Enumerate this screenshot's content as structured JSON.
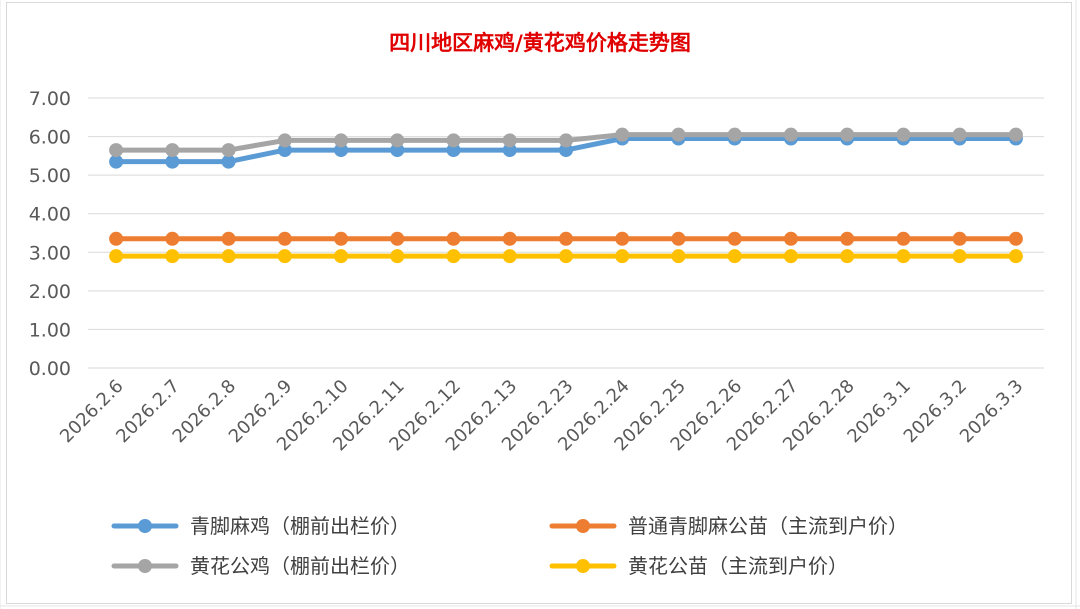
{
  "chart_data": {
    "type": "line",
    "title": "四川地区麻鸡/黄花鸡价格走势图",
    "title_color": "#e00000",
    "xlabel": "",
    "ylabel": "",
    "ylim": [
      0,
      7
    ],
    "y_ticks": [
      "0.00",
      "1.00",
      "2.00",
      "3.00",
      "4.00",
      "5.00",
      "6.00",
      "7.00"
    ],
    "grid": true,
    "legend_position": "bottom",
    "categories": [
      "2026.2.6",
      "2026.2.7",
      "2026.2.8",
      "2026.2.9",
      "2026.2.10",
      "2026.2.11",
      "2026.2.12",
      "2026.2.13",
      "2026.2.23",
      "2026.2.24",
      "2026.2.25",
      "2026.2.26",
      "2026.2.27",
      "2026.2.28",
      "2026.3.1",
      "2026.3.2",
      "2026.3.3"
    ],
    "series": [
      {
        "name": "青脚麻鸡（棚前出栏价）",
        "color": "#5b9bd5",
        "values": [
          5.35,
          5.35,
          5.35,
          5.65,
          5.65,
          5.65,
          5.65,
          5.65,
          5.65,
          5.95,
          5.95,
          5.95,
          5.95,
          5.95,
          5.95,
          5.95,
          5.95
        ]
      },
      {
        "name": "普通青脚麻公苗（主流到户价）",
        "color": "#ed7d31",
        "values": [
          3.35,
          3.35,
          3.35,
          3.35,
          3.35,
          3.35,
          3.35,
          3.35,
          3.35,
          3.35,
          3.35,
          3.35,
          3.35,
          3.35,
          3.35,
          3.35,
          3.35
        ]
      },
      {
        "name": "黄花公鸡（棚前出栏价）",
        "color": "#a5a5a5",
        "values": [
          5.65,
          5.65,
          5.65,
          5.9,
          5.9,
          5.9,
          5.9,
          5.9,
          5.9,
          6.05,
          6.05,
          6.05,
          6.05,
          6.05,
          6.05,
          6.05,
          6.05
        ]
      },
      {
        "name": "黄花公苗（主流到户价）",
        "color": "#ffc000",
        "values": [
          2.9,
          2.9,
          2.9,
          2.9,
          2.9,
          2.9,
          2.9,
          2.9,
          2.9,
          2.9,
          2.9,
          2.9,
          2.9,
          2.9,
          2.9,
          2.9,
          2.9
        ]
      }
    ]
  }
}
